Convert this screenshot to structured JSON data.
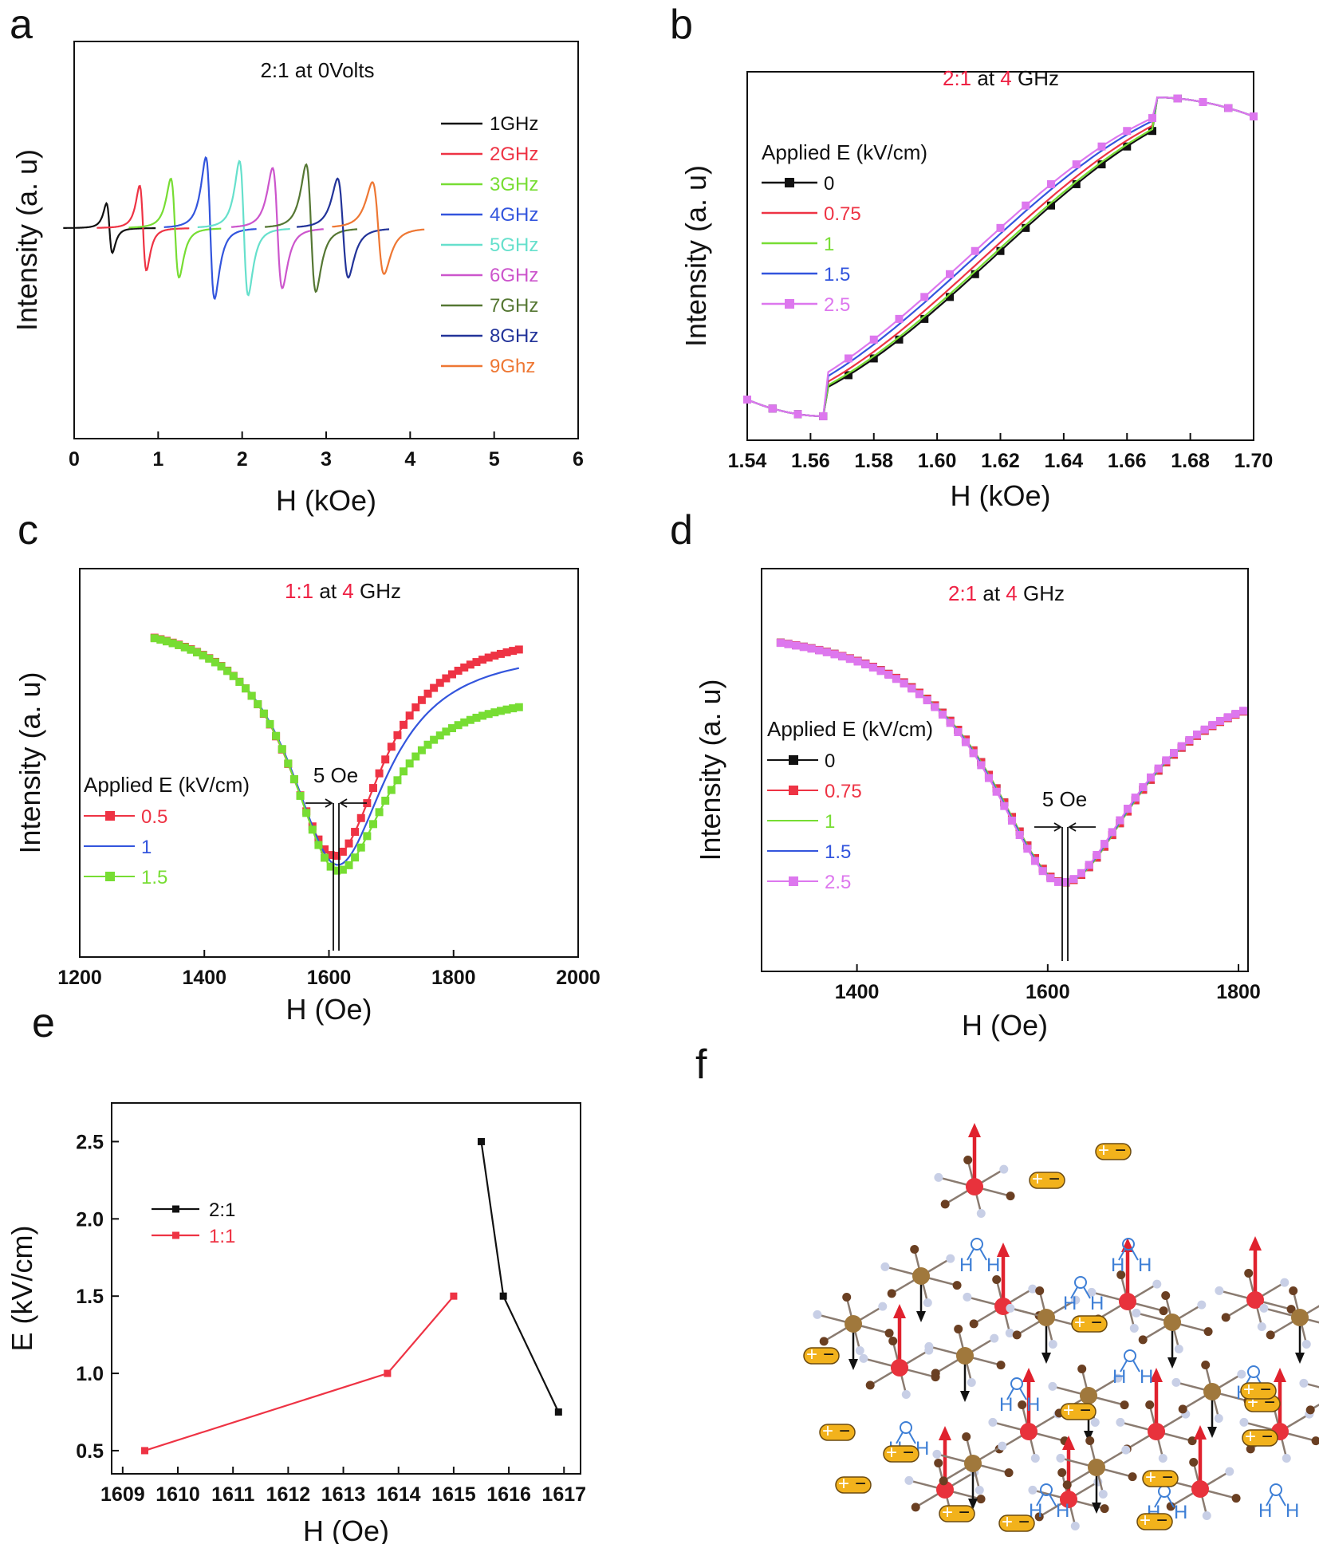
{
  "colors": {
    "black": "#111111",
    "red": "#ee3344",
    "green": "#77dd33",
    "blue": "#3355dd",
    "cyan": "#66e0cc",
    "magenta": "#cc55cc",
    "olive": "#557733",
    "navy": "#223399",
    "orange": "#ee7733",
    "pink": "#dd77ee",
    "highlight": "#ee2244"
  },
  "panels": {
    "a": {
      "letter": "a"
    },
    "b": {
      "letter": "b"
    },
    "c": {
      "letter": "c"
    },
    "d": {
      "letter": "d"
    },
    "e": {
      "letter": "e"
    },
    "f": {
      "letter": "f"
    }
  },
  "chart_data": [
    {
      "panel": "a",
      "type": "line",
      "title": "2:1 at 0Volts",
      "xlabel": "H (kOe)",
      "ylabel": "Intensity (a. u)",
      "xlim": [
        0,
        6
      ],
      "xticks": [
        "0",
        "1",
        "2",
        "3",
        "4",
        "5",
        "6"
      ],
      "legend_position": "right",
      "series": [
        {
          "name": "1GHz",
          "color": "black",
          "center": 0.42,
          "amp": 0.7,
          "width": 0.06
        },
        {
          "name": "2GHz",
          "color": "red",
          "center": 0.82,
          "amp": 1.2,
          "width": 0.07
        },
        {
          "name": "3GHz",
          "color": "green",
          "center": 1.2,
          "amp": 1.4,
          "width": 0.085
        },
        {
          "name": "4GHz",
          "color": "blue",
          "center": 1.62,
          "amp": 2.0,
          "width": 0.09
        },
        {
          "name": "5GHz",
          "color": "cyan",
          "center": 2.02,
          "amp": 1.9,
          "width": 0.09
        },
        {
          "name": "6GHz",
          "color": "magenta",
          "center": 2.42,
          "amp": 1.7,
          "width": 0.1
        },
        {
          "name": "7GHz",
          "color": "olive",
          "center": 2.82,
          "amp": 1.8,
          "width": 0.1
        },
        {
          "name": "8GHz",
          "color": "navy",
          "center": 3.2,
          "amp": 1.4,
          "width": 0.11
        },
        {
          "name": "9Ghz",
          "color": "orange",
          "center": 3.62,
          "amp": 1.3,
          "width": 0.12
        }
      ]
    },
    {
      "panel": "b",
      "type": "line",
      "title_parts": [
        "2:1",
        " at ",
        "4",
        " GHz"
      ],
      "xlabel": "H (kOe)",
      "ylabel": "Intensity (a. u)",
      "xlim": [
        1.54,
        1.7
      ],
      "xticks": [
        "1.54",
        "1.56",
        "1.58",
        "1.60",
        "1.62",
        "1.64",
        "1.66",
        "1.68",
        "1.70"
      ],
      "legend_title": "Applied E (kV/cm)",
      "legend_position": "left",
      "series": [
        {
          "name": "0",
          "color": "black",
          "marker": "square",
          "center": 1.618
        },
        {
          "name": "0.75",
          "color": "red",
          "marker": "none",
          "center": 1.615
        },
        {
          "name": "1",
          "color": "green",
          "marker": "none",
          "center": 1.617
        },
        {
          "name": "1.5",
          "color": "blue",
          "marker": "none",
          "center": 1.612
        },
        {
          "name": "2.5",
          "color": "pink",
          "marker": "square",
          "center": 1.61
        }
      ]
    },
    {
      "panel": "c",
      "type": "line",
      "title_parts": [
        "1:1",
        " at ",
        "4",
        " GHz"
      ],
      "xlabel": "H (Oe)",
      "ylabel": "Intensity (a. u)",
      "xlim": [
        1200,
        2000
      ],
      "xticks": [
        "1200",
        "1400",
        "1600",
        "1800",
        "2000"
      ],
      "legend_title": "Applied E (kV/cm)",
      "legend_position": "lower-left",
      "annotation": "5 Oe",
      "series": [
        {
          "name": "0.5",
          "color": "red",
          "marker": "square",
          "center": 1609,
          "depth": 0.82,
          "tail": 0.97
        },
        {
          "name": "1",
          "color": "blue",
          "marker": "none",
          "center": 1614,
          "depth": 0.85,
          "tail": 0.93
        },
        {
          "name": "1.5",
          "color": "green",
          "marker": "square",
          "center": 1615,
          "depth": 0.87,
          "tail": 0.84
        }
      ]
    },
    {
      "panel": "d",
      "type": "line",
      "title_parts": [
        "2:1",
        " at ",
        "4",
        " GHz"
      ],
      "xlabel": "H (Oe)",
      "ylabel": "Intensity (a. u)",
      "xlim": [
        1300,
        1810
      ],
      "xticks": [
        "1400",
        "1600",
        "1800"
      ],
      "legend_title": "Applied E (kV/cm)",
      "legend_position": "left",
      "annotation": "5 Oe",
      "series": [
        {
          "name": "0",
          "color": "black",
          "marker": "square",
          "center": 1617
        },
        {
          "name": "0.75",
          "color": "red",
          "marker": "square",
          "center": 1617
        },
        {
          "name": "1",
          "color": "green",
          "marker": "none",
          "center": 1617
        },
        {
          "name": "1.5",
          "color": "blue",
          "marker": "none",
          "center": 1616
        },
        {
          "name": "2.5",
          "color": "pink",
          "marker": "square",
          "center": 1615
        }
      ]
    },
    {
      "panel": "e",
      "type": "line",
      "xlabel": "H (Oe)",
      "ylabel": "E (kV/cm)",
      "xlim": [
        1608.8,
        1617.3
      ],
      "ylim": [
        0.35,
        2.75
      ],
      "xticks": [
        "1609",
        "1610",
        "1611",
        "1612",
        "1613",
        "1614",
        "1615",
        "1616",
        "1617"
      ],
      "yticks": [
        "0.5",
        "1.0",
        "1.5",
        "2.0",
        "2.5"
      ],
      "legend_position": "upper-left",
      "series": [
        {
          "name": "2:1",
          "color": "black",
          "x": [
            1615.5,
            1615.9,
            1616.9
          ],
          "y": [
            2.5,
            1.5,
            0.75
          ]
        },
        {
          "name": "1:1",
          "color": "red",
          "x": [
            1609.4,
            1613.8,
            1615.0
          ],
          "y": [
            0.5,
            1.0,
            1.5
          ]
        }
      ]
    }
  ],
  "diagram_f": {
    "atom_labels": [
      "H",
      "H"
    ],
    "charge_labels": [
      "+",
      "−"
    ]
  }
}
